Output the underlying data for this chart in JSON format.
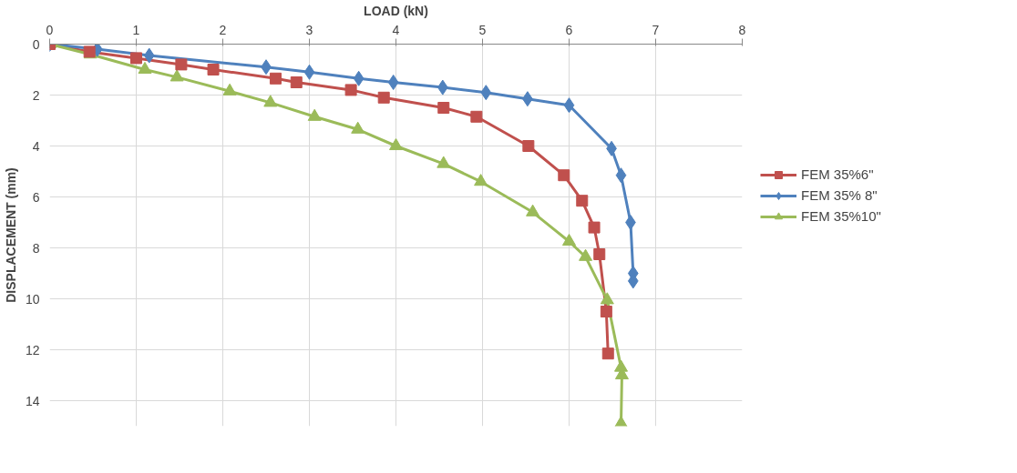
{
  "chart_data": {
    "type": "line",
    "xlabel": "LOAD (kN)",
    "ylabel": "DISPLACEMENT (mm)",
    "xlim": [
      0,
      8
    ],
    "xticks": [
      0,
      1,
      2,
      3,
      4,
      5,
      6,
      7,
      8
    ],
    "ylim": [
      15,
      0
    ],
    "yticks": [
      0,
      2,
      4,
      6,
      8,
      10,
      12,
      14
    ],
    "grid": true,
    "legend": "right",
    "line_style": "solid",
    "series": [
      {
        "name": "FEM 35%6\"",
        "color": "#c0504d",
        "marker": "square",
        "x": [
          0,
          0.46,
          1.0,
          1.52,
          1.89,
          2.61,
          2.85,
          3.48,
          3.86,
          4.55,
          4.93,
          5.53,
          5.94,
          6.15,
          6.29,
          6.35,
          6.43,
          6.45
        ],
        "values": [
          0,
          0.3,
          0.55,
          0.8,
          1.0,
          1.35,
          1.5,
          1.8,
          2.1,
          2.5,
          2.85,
          4.0,
          5.15,
          6.15,
          7.2,
          8.25,
          10.5,
          12.15
        ]
      },
      {
        "name": "FEM 35% 8\"",
        "color": "#4f81bd",
        "marker": "diamond",
        "x": [
          0,
          0.55,
          1.15,
          2.5,
          3.0,
          3.57,
          3.97,
          4.54,
          5.04,
          5.52,
          6.0,
          6.49,
          6.6,
          6.71,
          6.74,
          6.74
        ],
        "values": [
          0,
          0.2,
          0.45,
          0.9,
          1.1,
          1.35,
          1.5,
          1.7,
          1.9,
          2.15,
          2.4,
          4.1,
          5.15,
          7.0,
          9.0,
          9.3
        ]
      },
      {
        "name": "FEM 35%10\"",
        "color": "#9bbb59",
        "marker": "triangle",
        "x": [
          0,
          0.47,
          1.1,
          1.47,
          2.08,
          2.55,
          3.06,
          3.56,
          4.0,
          4.55,
          4.98,
          5.58,
          6.0,
          6.19,
          6.44,
          6.6,
          6.61,
          6.6
        ],
        "values": [
          0,
          0.4,
          1.0,
          1.3,
          1.85,
          2.3,
          2.85,
          3.35,
          4.0,
          4.7,
          5.4,
          6.6,
          7.75,
          8.35,
          10.05,
          12.7,
          13.0,
          14.9
        ]
      }
    ]
  }
}
